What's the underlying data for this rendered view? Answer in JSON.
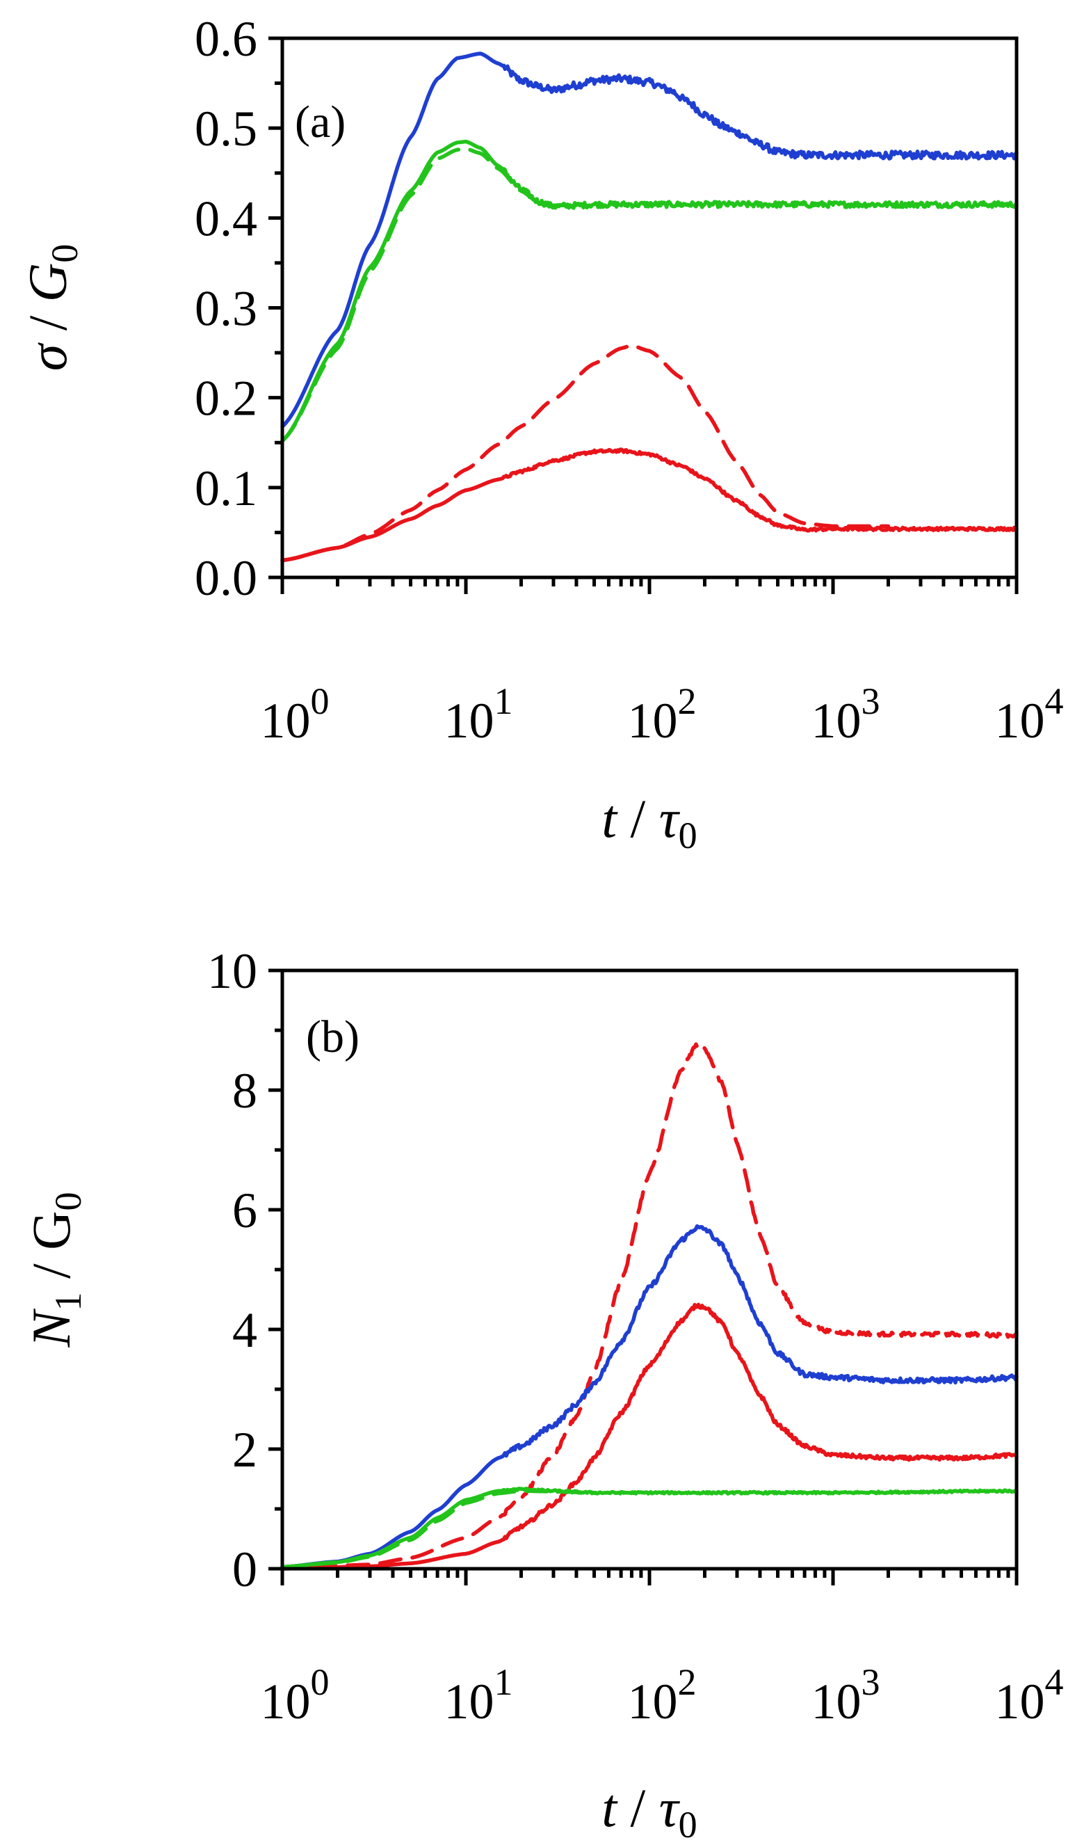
{
  "chart_data": [
    {
      "panel": "a",
      "type": "line",
      "title": "",
      "panel_label": "(a)",
      "xscale": "log",
      "xlim": [
        1,
        10000
      ],
      "ylim": [
        0,
        0.6
      ],
      "xlabel": {
        "main": "t",
        "sep": " / ",
        "sym": "τ",
        "sub": "0"
      },
      "ylabel": {
        "main": "σ",
        "sep": " / ",
        "sym": "G",
        "sub": "0"
      },
      "xticks": [
        {
          "mant": "10",
          "exp": "0",
          "value": 1
        },
        {
          "mant": "10",
          "exp": "1",
          "value": 10
        },
        {
          "mant": "10",
          "exp": "2",
          "value": 100
        },
        {
          "mant": "10",
          "exp": "3",
          "value": 1000
        },
        {
          "mant": "10",
          "exp": "4",
          "value": 10000
        }
      ],
      "yticks": [
        {
          "label": "0.0",
          "value": 0
        },
        {
          "label": "0.1",
          "value": 0.1
        },
        {
          "label": "0.2",
          "value": 0.2
        },
        {
          "label": "0.3",
          "value": 0.3
        },
        {
          "label": "0.4",
          "value": 0.4
        },
        {
          "label": "0.5",
          "value": 0.5
        },
        {
          "label": "0.6",
          "value": 0.6
        }
      ],
      "series": [
        {
          "name": "blue-solid",
          "color": "#1f3fd1",
          "dash": "solid",
          "noise": 0.004,
          "x": [
            1,
            2,
            3,
            5,
            7,
            9,
            12,
            15,
            20,
            25,
            30,
            40,
            50,
            70,
            100,
            130,
            160,
            200,
            250,
            300,
            400,
            500,
            700,
            1000,
            2000,
            5000,
            10000
          ],
          "y": [
            0.168,
            0.275,
            0.37,
            0.49,
            0.555,
            0.578,
            0.583,
            0.572,
            0.553,
            0.546,
            0.542,
            0.548,
            0.553,
            0.555,
            0.551,
            0.542,
            0.53,
            0.515,
            0.502,
            0.495,
            0.482,
            0.473,
            0.47,
            0.47,
            0.47,
            0.47,
            0.47
          ]
        },
        {
          "name": "green-solid",
          "color": "#22c41b",
          "dash": "solid",
          "noise": 0.003,
          "x": [
            1,
            2,
            3,
            5,
            7,
            9,
            10,
            12,
            15,
            20,
            25,
            30,
            40,
            50,
            100,
            1000,
            10000
          ],
          "y": [
            0.152,
            0.26,
            0.345,
            0.43,
            0.473,
            0.484,
            0.485,
            0.478,
            0.458,
            0.432,
            0.418,
            0.413,
            0.414,
            0.415,
            0.415,
            0.415,
            0.415
          ]
        },
        {
          "name": "green-dashed",
          "color": "#22c41b",
          "dash": "dashed",
          "noise": 0,
          "x": [
            1,
            2,
            3,
            5,
            7,
            9,
            10,
            12,
            15,
            20,
            25,
            30,
            40
          ],
          "y": [
            0.152,
            0.255,
            0.34,
            0.425,
            0.466,
            0.476,
            0.477,
            0.472,
            0.455,
            0.43,
            0.417,
            0.414,
            0.414
          ]
        },
        {
          "name": "red-solid",
          "color": "#e8141a",
          "dash": "solid",
          "noise": 0.0015,
          "x": [
            1,
            2,
            3,
            5,
            7,
            10,
            15,
            20,
            30,
            50,
            70,
            100,
            150,
            200,
            300,
            400,
            500,
            700,
            1000,
            10000
          ],
          "y": [
            0.019,
            0.033,
            0.045,
            0.065,
            0.08,
            0.097,
            0.109,
            0.118,
            0.13,
            0.14,
            0.141,
            0.137,
            0.124,
            0.11,
            0.085,
            0.068,
            0.058,
            0.053,
            0.054,
            0.054
          ]
        },
        {
          "name": "red-dashed",
          "color": "#e8141a",
          "dash": "dashed",
          "noise": 0,
          "x": [
            1,
            2,
            3,
            5,
            7,
            10,
            15,
            20,
            30,
            50,
            70,
            80,
            100,
            150,
            200,
            300,
            400,
            500,
            700,
            1000,
            2000
          ],
          "y": [
            0.019,
            0.033,
            0.048,
            0.075,
            0.097,
            0.12,
            0.148,
            0.168,
            0.198,
            0.238,
            0.255,
            0.258,
            0.252,
            0.222,
            0.185,
            0.128,
            0.092,
            0.072,
            0.06,
            0.057,
            0.057
          ]
        }
      ]
    },
    {
      "panel": "b",
      "type": "line",
      "title": "",
      "panel_label": "(b)",
      "xscale": "log",
      "xlim": [
        1,
        10000
      ],
      "ylim": [
        0,
        10
      ],
      "xlabel": {
        "main": "t",
        "sep": " / ",
        "sym": "τ",
        "sub": "0"
      },
      "ylabel": {
        "main": "N",
        "mainsub": "1",
        "sep": " / ",
        "sym": "G",
        "sub": "0"
      },
      "xticks": [
        {
          "mant": "10",
          "exp": "0",
          "value": 1
        },
        {
          "mant": "10",
          "exp": "1",
          "value": 10
        },
        {
          "mant": "10",
          "exp": "2",
          "value": 100
        },
        {
          "mant": "10",
          "exp": "3",
          "value": 1000
        },
        {
          "mant": "10",
          "exp": "4",
          "value": 10000
        }
      ],
      "yticks": [
        {
          "label": "0",
          "value": 0
        },
        {
          "label": "2",
          "value": 2
        },
        {
          "label": "4",
          "value": 4
        },
        {
          "label": "6",
          "value": 6
        },
        {
          "label": "8",
          "value": 8
        },
        {
          "label": "10",
          "value": 10
        }
      ],
      "series": [
        {
          "name": "red-dashed",
          "color": "#e8141a",
          "dash": "dashed",
          "noise": 0.03,
          "x": [
            1,
            3,
            5,
            10,
            15,
            20,
            30,
            40,
            50,
            70,
            100,
            150,
            180,
            200,
            250,
            300,
            400,
            500,
            700,
            1000,
            2000,
            5000,
            10000
          ],
          "y": [
            0.0,
            0.07,
            0.18,
            0.52,
            0.85,
            1.2,
            1.9,
            2.55,
            3.3,
            4.8,
            6.6,
            8.35,
            8.75,
            8.7,
            8.1,
            7.1,
            5.6,
            4.7,
            4.1,
            3.95,
            3.92,
            3.92,
            3.9
          ]
        },
        {
          "name": "blue-solid",
          "color": "#1f3fd1",
          "dash": "solid",
          "noise": 0.04,
          "x": [
            1,
            2,
            3,
            5,
            7,
            10,
            15,
            20,
            30,
            40,
            50,
            70,
            100,
            150,
            180,
            200,
            250,
            300,
            400,
            500,
            700,
            1000,
            2000,
            5000,
            10000
          ],
          "y": [
            0.03,
            0.12,
            0.25,
            0.62,
            0.98,
            1.4,
            1.85,
            2.05,
            2.4,
            2.75,
            3.1,
            3.8,
            4.7,
            5.5,
            5.7,
            5.68,
            5.4,
            4.9,
            4.1,
            3.6,
            3.25,
            3.2,
            3.15,
            3.15,
            3.2
          ]
        },
        {
          "name": "red-solid",
          "color": "#e8141a",
          "dash": "solid",
          "noise": 0.03,
          "x": [
            1,
            3,
            5,
            10,
            15,
            20,
            30,
            40,
            50,
            70,
            100,
            150,
            180,
            200,
            250,
            300,
            400,
            500,
            700,
            1000,
            2000,
            5000,
            10000
          ],
          "y": [
            0.0,
            0.04,
            0.09,
            0.25,
            0.45,
            0.7,
            1.08,
            1.45,
            1.85,
            2.6,
            3.4,
            4.15,
            4.4,
            4.38,
            4.1,
            3.6,
            2.9,
            2.4,
            2.05,
            1.9,
            1.85,
            1.85,
            1.9
          ]
        },
        {
          "name": "green-solid",
          "color": "#22c41b",
          "dash": "solid",
          "noise": 0.015,
          "x": [
            1,
            2,
            3,
            5,
            7,
            10,
            15,
            20,
            30,
            50,
            100,
            1000,
            10000
          ],
          "y": [
            0.03,
            0.11,
            0.22,
            0.52,
            0.85,
            1.15,
            1.3,
            1.33,
            1.3,
            1.27,
            1.27,
            1.27,
            1.3
          ]
        },
        {
          "name": "green-dashed",
          "color": "#22c41b",
          "dash": "dashed",
          "noise": 0,
          "x": [
            1,
            2,
            3,
            5,
            7,
            10,
            15,
            20,
            30,
            50
          ],
          "y": [
            0.03,
            0.1,
            0.2,
            0.48,
            0.8,
            1.1,
            1.26,
            1.3,
            1.29,
            1.27
          ]
        }
      ]
    }
  ]
}
